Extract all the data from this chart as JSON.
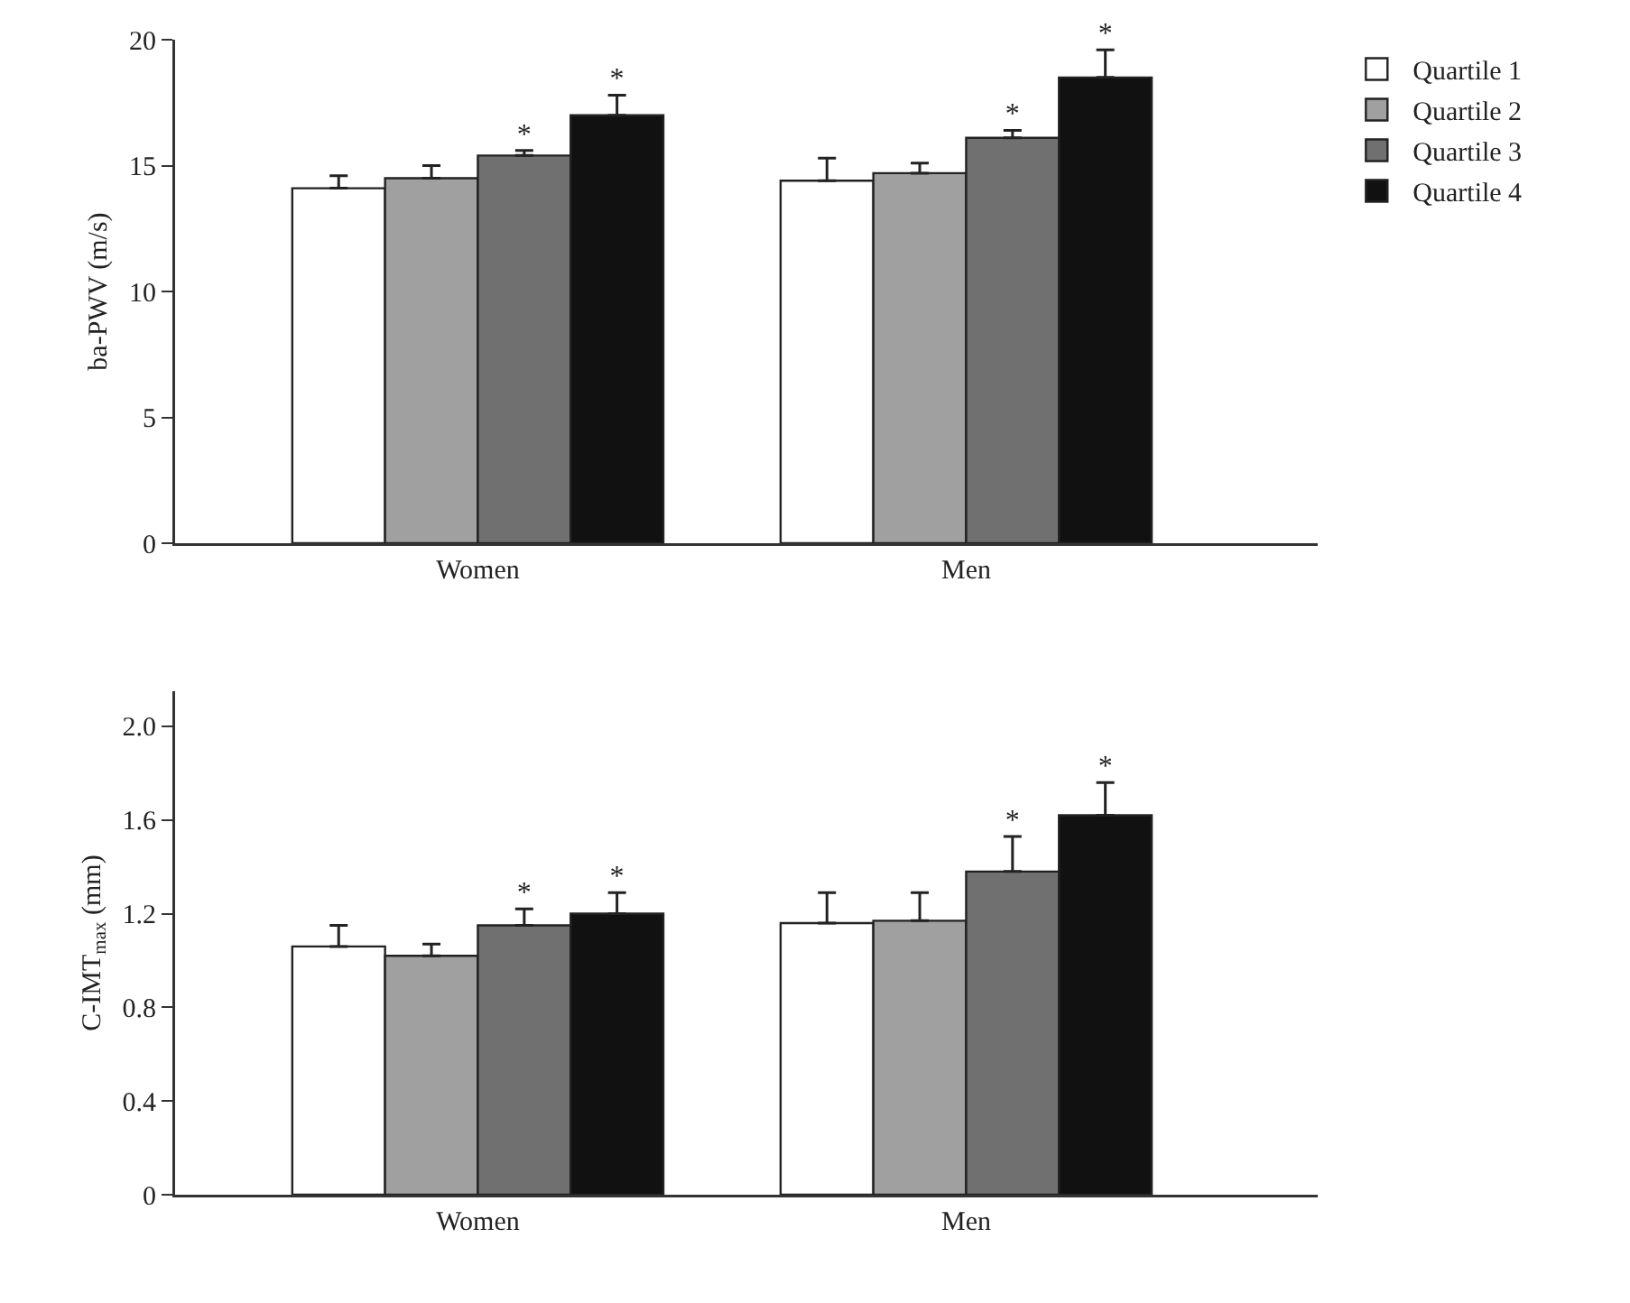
{
  "chart_data": [
    {
      "type": "bar",
      "ylabel": "ba-PWV (m/s)",
      "categories": [
        "Women",
        "Men"
      ],
      "ylim": [
        0,
        20
      ],
      "yticks": [
        0,
        5,
        10,
        15,
        20
      ],
      "grid": false,
      "legend": "top right",
      "series": [
        {
          "name": "Quartile 1",
          "color": "#ffffff",
          "values": [
            14.1,
            14.4
          ],
          "errors": [
            [
              14.1,
              14.6
            ],
            [
              14.4,
              15.3
            ]
          ],
          "value_labels": [
            null,
            null
          ]
        },
        {
          "name": "Quartile 2",
          "color": "#a0a0a0",
          "values": [
            14.5,
            14.7
          ],
          "errors": [
            [
              14.5,
              15.0
            ],
            [
              14.7,
              15.1
            ]
          ],
          "value_labels": [
            null,
            null
          ]
        },
        {
          "name": "Quartile 3",
          "color": "#707070",
          "values": [
            15.4,
            16.1
          ],
          "errors": [
            [
              15.4,
              15.6
            ],
            [
              16.1,
              16.4
            ]
          ],
          "value_labels": [
            "*",
            "*"
          ]
        },
        {
          "name": "Quartile 4",
          "color": "#111111",
          "values": [
            17.0,
            18.5
          ],
          "errors": [
            [
              17.0,
              17.8
            ],
            [
              18.5,
              19.6
            ]
          ],
          "value_labels": [
            "*",
            "*"
          ]
        }
      ]
    },
    {
      "type": "bar",
      "ylabel": "C-IMT$_{max}$ (mm)",
      "categories": [
        "Women",
        "Men"
      ],
      "ylim": [
        0,
        2.15
      ],
      "yticks": [
        0,
        {
          "value": 0.4,
          "label": "0.4"
        },
        {
          "value": 0.8,
          "label": "0.8"
        },
        {
          "value": 1.2,
          "label": "1.2"
        },
        {
          "value": 1.6,
          "label": "1.6"
        },
        {
          "value": 2.0,
          "label": "2.0"
        }
      ],
      "grid": false,
      "legend": false,
      "series": [
        {
          "color": "#ffffff",
          "values": [
            1.06,
            1.16
          ],
          "errors": [
            [
              1.06,
              1.15
            ],
            [
              1.16,
              1.29
            ]
          ],
          "value_labels": [
            null,
            null
          ]
        },
        {
          "color": "#a0a0a0",
          "values": [
            1.02,
            1.17
          ],
          "errors": [
            [
              1.02,
              1.07
            ],
            [
              1.17,
              1.29
            ]
          ],
          "value_labels": [
            null,
            null
          ]
        },
        {
          "color": "#707070",
          "values": [
            1.15,
            1.38
          ],
          "errors": [
            [
              1.15,
              1.22
            ],
            [
              1.38,
              1.53
            ]
          ],
          "value_labels": [
            "*",
            "*"
          ]
        },
        {
          "color": "#111111",
          "values": [
            1.2,
            1.62
          ],
          "errors": [
            [
              1.2,
              1.29
            ],
            [
              1.62,
              1.76
            ]
          ],
          "value_labels": [
            "*",
            "*"
          ]
        }
      ]
    }
  ]
}
